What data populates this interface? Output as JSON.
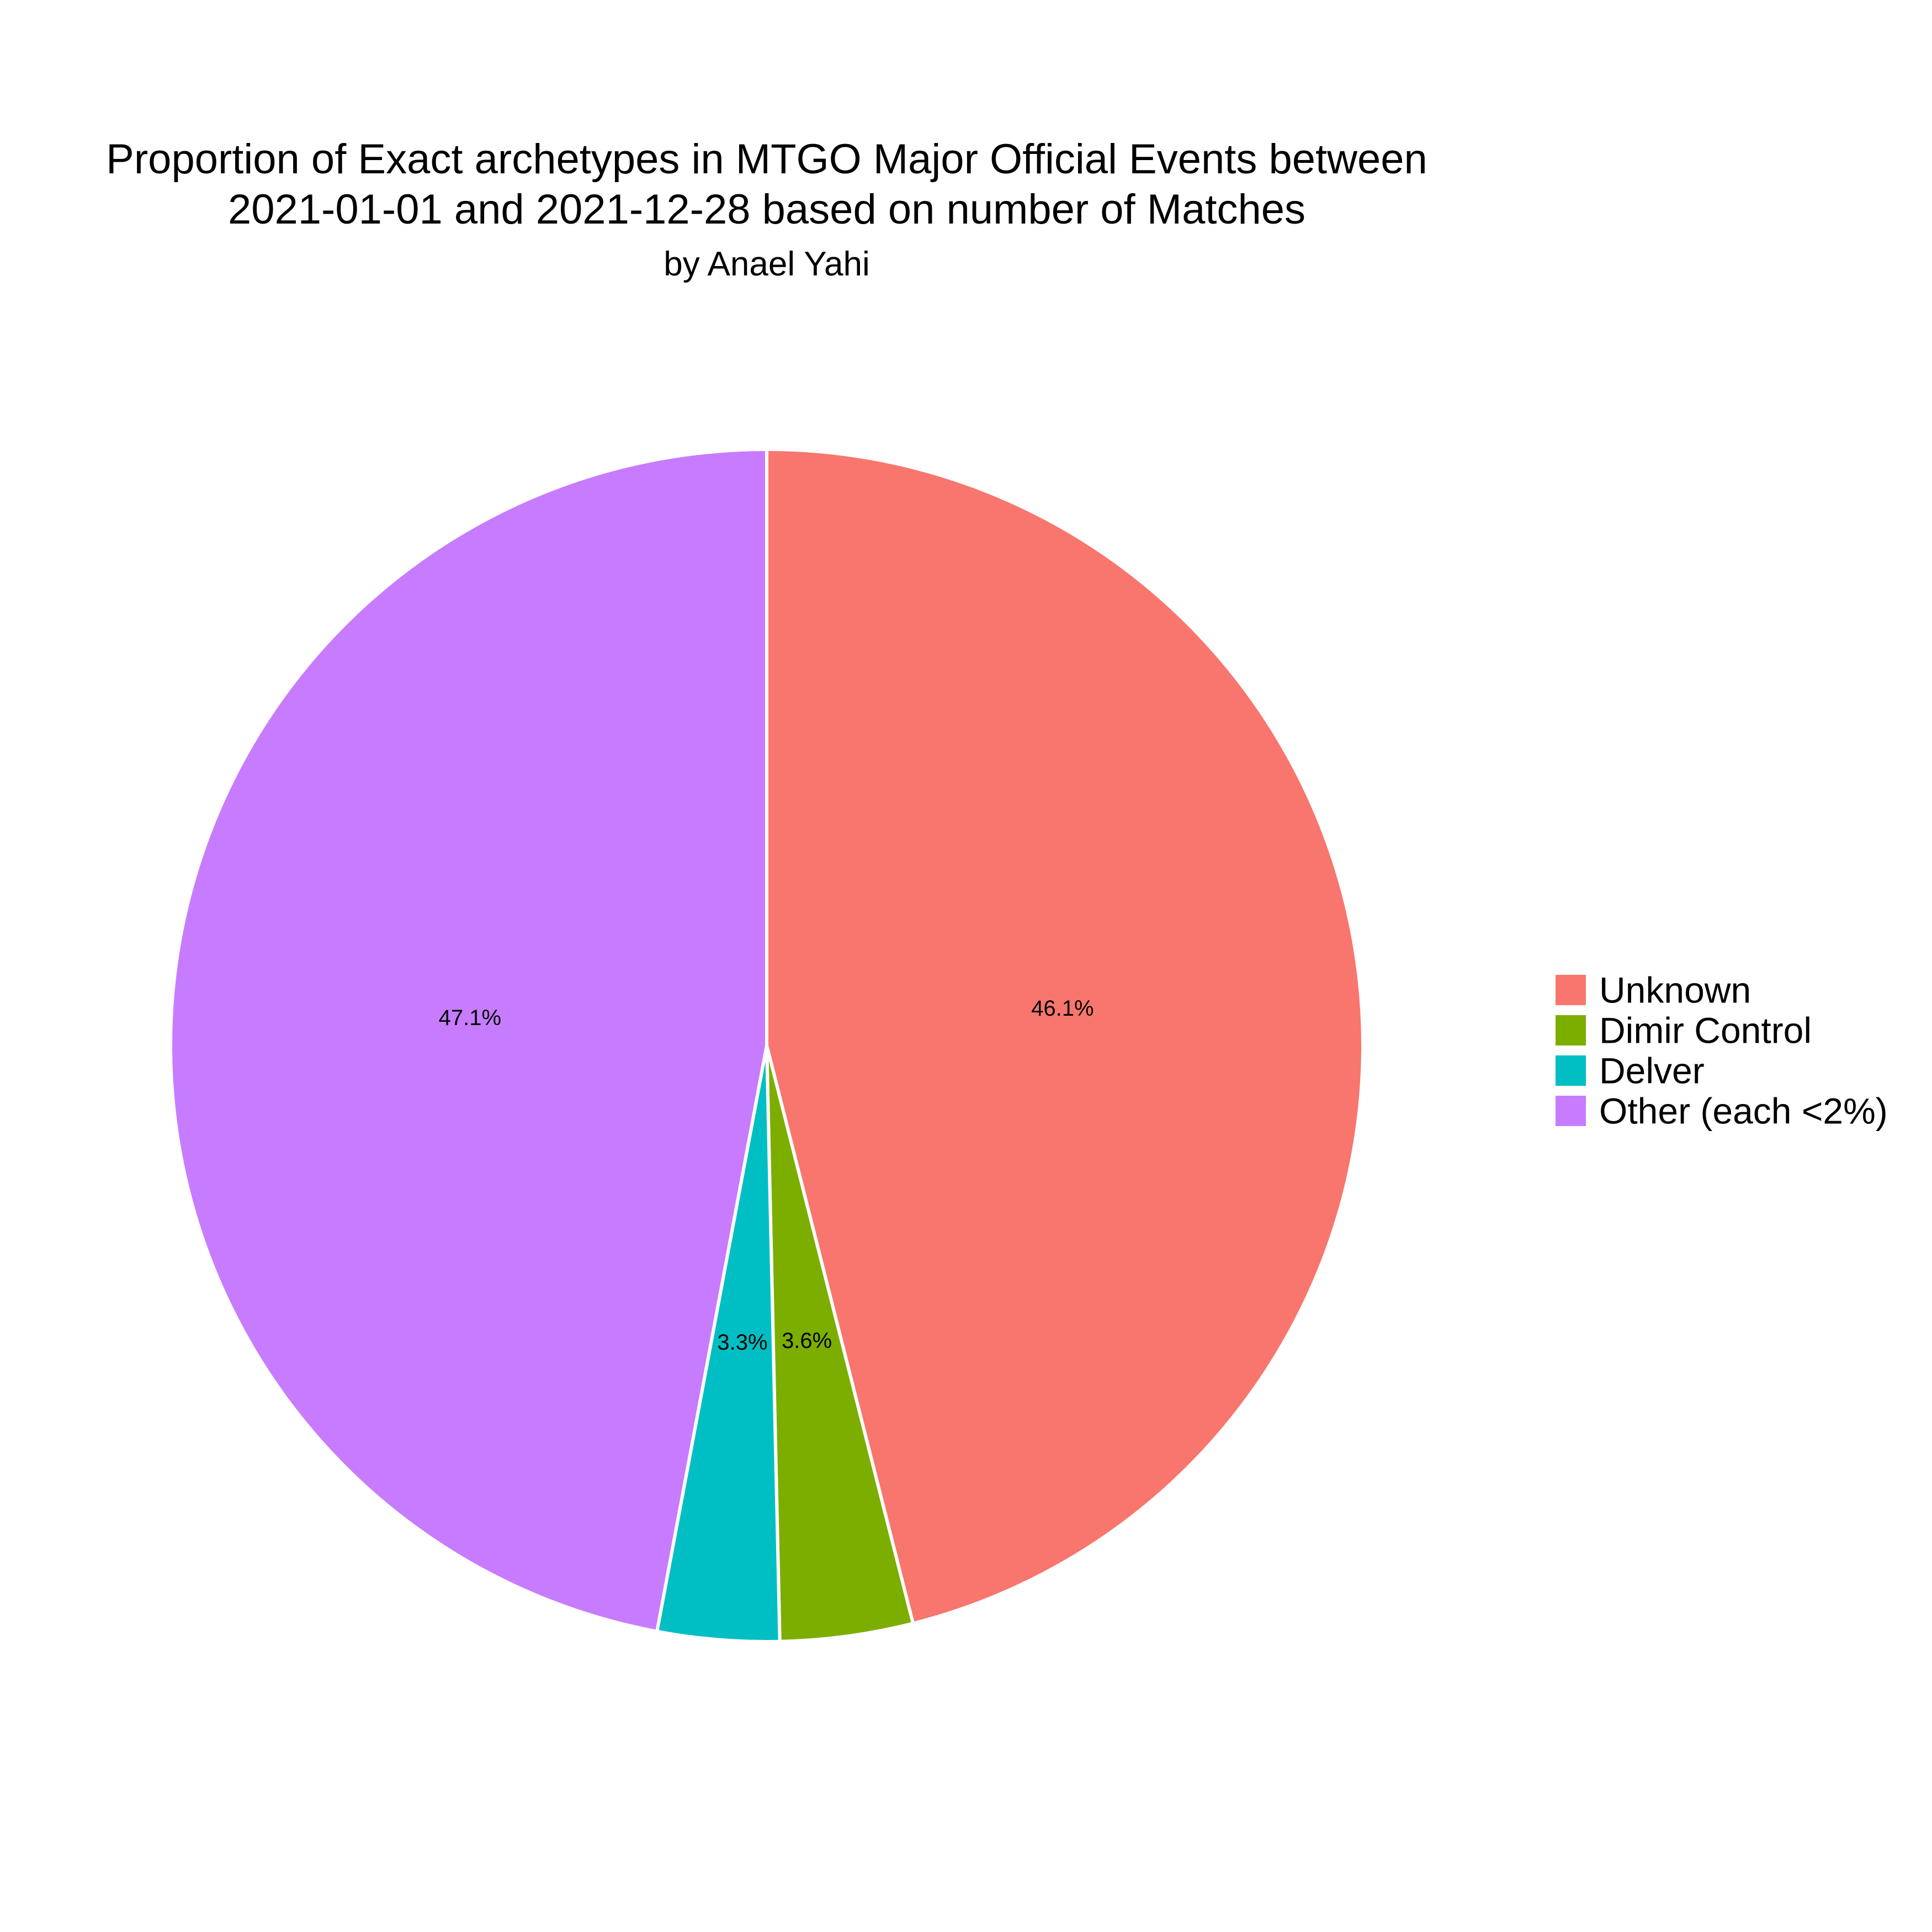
{
  "chart_data": {
    "type": "pie",
    "title_lines": [
      "Proportion of Exact archetypes in MTGO Major Official Events between",
      "2021-01-01 and 2021-12-28 based on number of Matches"
    ],
    "subtitle": "by Anael Yahi",
    "slices": [
      {
        "name": "Unknown",
        "value": 46.1,
        "label": "46.1%",
        "color": "#F8766D"
      },
      {
        "name": "Dimir Control",
        "value": 3.6,
        "label": "3.6%",
        "color": "#7CAE00"
      },
      {
        "name": "Delver",
        "value": 3.3,
        "label": "3.3%",
        "color": "#00BFC4"
      },
      {
        "name": "Other (each <2%)",
        "value": 47.1,
        "label": "47.1%",
        "color": "#C77CFF"
      }
    ],
    "start": "12 o'clock",
    "direction": "clockwise",
    "slice_border_color": "#FFFFFF",
    "legend_position": "right"
  }
}
